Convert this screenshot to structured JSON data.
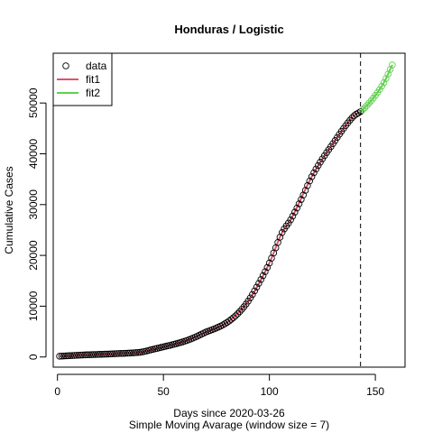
{
  "chart_data": {
    "type": "scatter",
    "title": "Honduras / Logistic",
    "xlabel": "Days since 2020-03-26",
    "subtitle": "Simple Moving Avarage (window size = 7)",
    "ylabel": "Cumulative Cases",
    "xlim": [
      -2,
      164
    ],
    "ylim": [
      -2000,
      59800
    ],
    "x_ticks": [
      0,
      50,
      100,
      150
    ],
    "y_ticks": [
      0,
      10000,
      20000,
      30000,
      40000,
      50000
    ],
    "vline_x": 143,
    "grid": false,
    "legend_position": "top-left",
    "legend": [
      {
        "label": "data",
        "kind": "point",
        "color": "#000000"
      },
      {
        "label": "fit1",
        "kind": "line",
        "color": "#DF536B"
      },
      {
        "label": "fit2",
        "kind": "line",
        "color": "#61D04F"
      }
    ],
    "series": [
      {
        "name": "data",
        "kind": "points",
        "color": "#000000",
        "points": [
          [
            1,
            150
          ],
          [
            5,
            250
          ],
          [
            10,
            350
          ],
          [
            15,
            450
          ],
          [
            20,
            520
          ],
          [
            25,
            600
          ],
          [
            30,
            700
          ],
          [
            35,
            800
          ],
          [
            40,
            1000
          ],
          [
            45,
            1500
          ],
          [
            50,
            2000
          ],
          [
            55,
            2500
          ],
          [
            60,
            3100
          ],
          [
            65,
            3900
          ],
          [
            70,
            4900
          ],
          [
            75,
            5700
          ],
          [
            80,
            6800
          ],
          [
            85,
            8500
          ],
          [
            90,
            11000
          ],
          [
            95,
            14500
          ],
          [
            100,
            18500
          ],
          [
            103,
            21500
          ],
          [
            106,
            24500
          ],
          [
            110,
            27000
          ],
          [
            115,
            31000
          ],
          [
            120,
            35500
          ],
          [
            125,
            39000
          ],
          [
            130,
            42000
          ],
          [
            135,
            45000
          ],
          [
            140,
            47500
          ],
          [
            143,
            48300
          ],
          [
            146,
            49500
          ],
          [
            150,
            51500
          ],
          [
            154,
            54000
          ],
          [
            158,
            57500
          ]
        ]
      },
      {
        "name": "fit1",
        "kind": "line",
        "color": "#DF536B",
        "points": [
          [
            1,
            150
          ],
          [
            10,
            350
          ],
          [
            20,
            520
          ],
          [
            30,
            700
          ],
          [
            40,
            1000
          ],
          [
            50,
            2000
          ],
          [
            60,
            3100
          ],
          [
            70,
            4900
          ],
          [
            80,
            6800
          ],
          [
            90,
            11000
          ],
          [
            100,
            18500
          ],
          [
            106,
            24500
          ],
          [
            110,
            27000
          ],
          [
            120,
            35500
          ],
          [
            130,
            42000
          ],
          [
            140,
            47500
          ],
          [
            143,
            48300
          ]
        ]
      },
      {
        "name": "fit2",
        "kind": "line",
        "color": "#61D04F",
        "points": [
          [
            143,
            48300
          ],
          [
            146,
            49500
          ],
          [
            150,
            51500
          ],
          [
            154,
            54000
          ],
          [
            158,
            57500
          ]
        ]
      }
    ]
  }
}
